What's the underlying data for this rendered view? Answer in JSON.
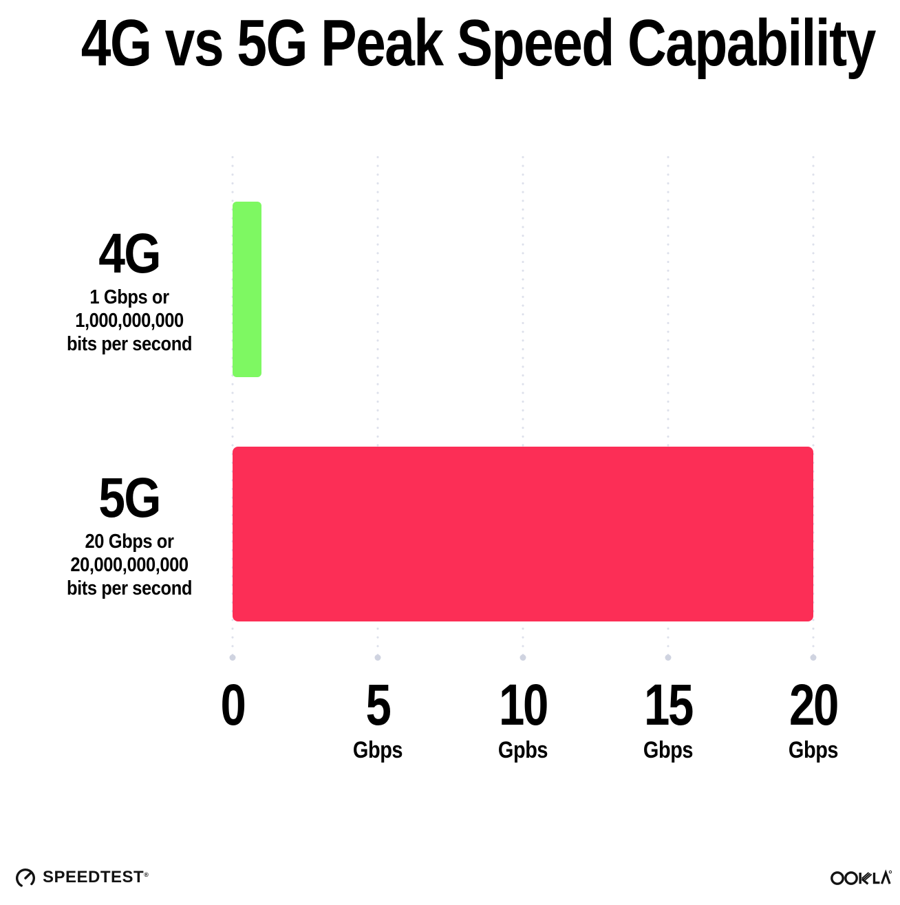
{
  "title": "4G vs 5G Peak Speed Capability",
  "chart_data": {
    "type": "bar",
    "orientation": "horizontal",
    "title": "4G vs 5G Peak Speed Capability",
    "categories": [
      "4G",
      "5G"
    ],
    "values": [
      1,
      20
    ],
    "xlim": [
      0,
      20
    ],
    "grid": "dotted vertical gridlines with round end-dot at bottom",
    "legend": "none",
    "rows": [
      {
        "category": "4G",
        "value": 1,
        "color": "#7EF862",
        "sublabel_lines": [
          "1 Gbps or",
          "1,000,000,000",
          "bits per second"
        ]
      },
      {
        "category": "5G",
        "value": 20,
        "color": "#FC2E56",
        "sublabel_lines": [
          "20 Gbps or",
          "20,000,000,000",
          "bits per second"
        ]
      }
    ],
    "x_ticks": [
      {
        "value": 0,
        "label": "0",
        "unit": ""
      },
      {
        "value": 5,
        "label": "5",
        "unit": "Gbps"
      },
      {
        "value": 10,
        "label": "10",
        "unit": "Gpbs"
      },
      {
        "value": 15,
        "label": "15",
        "unit": "Gbps"
      },
      {
        "value": 20,
        "label": "20",
        "unit": "Gbps"
      }
    ]
  },
  "colors": {
    "bar_4g_green": "#7EF862",
    "bar_5g_pink": "#FC2E56",
    "grid_dot": "#dde0eb",
    "grid_end_dot": "#cfd3e0",
    "text": "#000000"
  },
  "footer": {
    "speedtest": {
      "label": "SPEEDTEST",
      "trademark": "®",
      "icon": "speedtest-gauge-icon"
    },
    "ookla": {
      "label": "OOKLA",
      "trademark": "®"
    }
  }
}
